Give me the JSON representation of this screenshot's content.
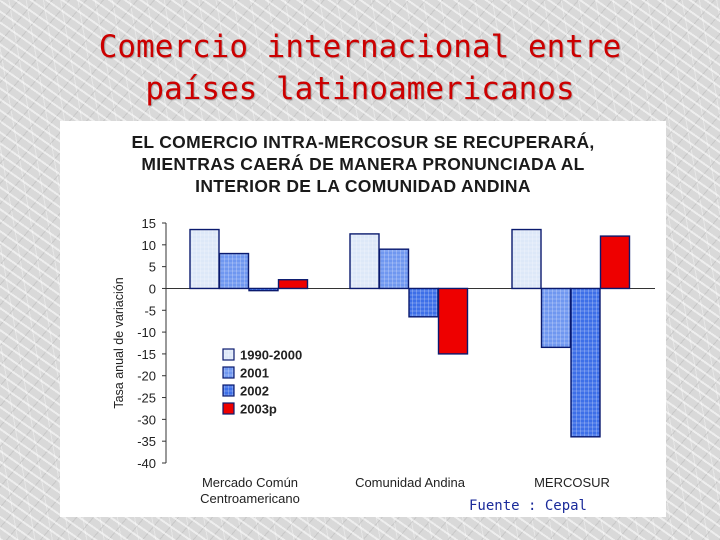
{
  "slide": {
    "title_line1": "Comercio internacional entre",
    "title_line2": "países latinoamericanos"
  },
  "chart_heading": {
    "line1": "EL COMERCIO INTRA-MERCOSUR SE RECUPERARÁ,",
    "line2": "MIENTRAS CAERÁ DE MANERA PRONUNCIADA AL",
    "line3": "INTERIOR DE LA COMUNIDAD ANDINA"
  },
  "source_note": "Fuente : Cepal",
  "chart_data": {
    "type": "bar",
    "ylabel": "Tasa anual de variación",
    "xlabel": "",
    "ylim": [
      -40,
      15
    ],
    "yticks": [
      15,
      10,
      5,
      0,
      -5,
      -10,
      -15,
      -20,
      -25,
      -30,
      -35,
      -40
    ],
    "grid": false,
    "legend_position": "left-middle",
    "categories": [
      [
        "Mercado Común",
        "Centroamericano"
      ],
      [
        "Comunidad Andina"
      ],
      [
        "MERCOSUR"
      ]
    ],
    "series": [
      {
        "name": "1990-2000",
        "color": "#dde8f8",
        "values": [
          13.5,
          12.5,
          13.5
        ]
      },
      {
        "name": "2001",
        "color": "#6f97f0",
        "values": [
          8,
          9,
          -13.5
        ]
      },
      {
        "name": "2002",
        "color": "#3d6fe8",
        "values": [
          -0.5,
          -6.5,
          -34
        ]
      },
      {
        "name": "2003p",
        "color": "#ee0000",
        "values": [
          2,
          -15,
          12
        ]
      }
    ]
  }
}
